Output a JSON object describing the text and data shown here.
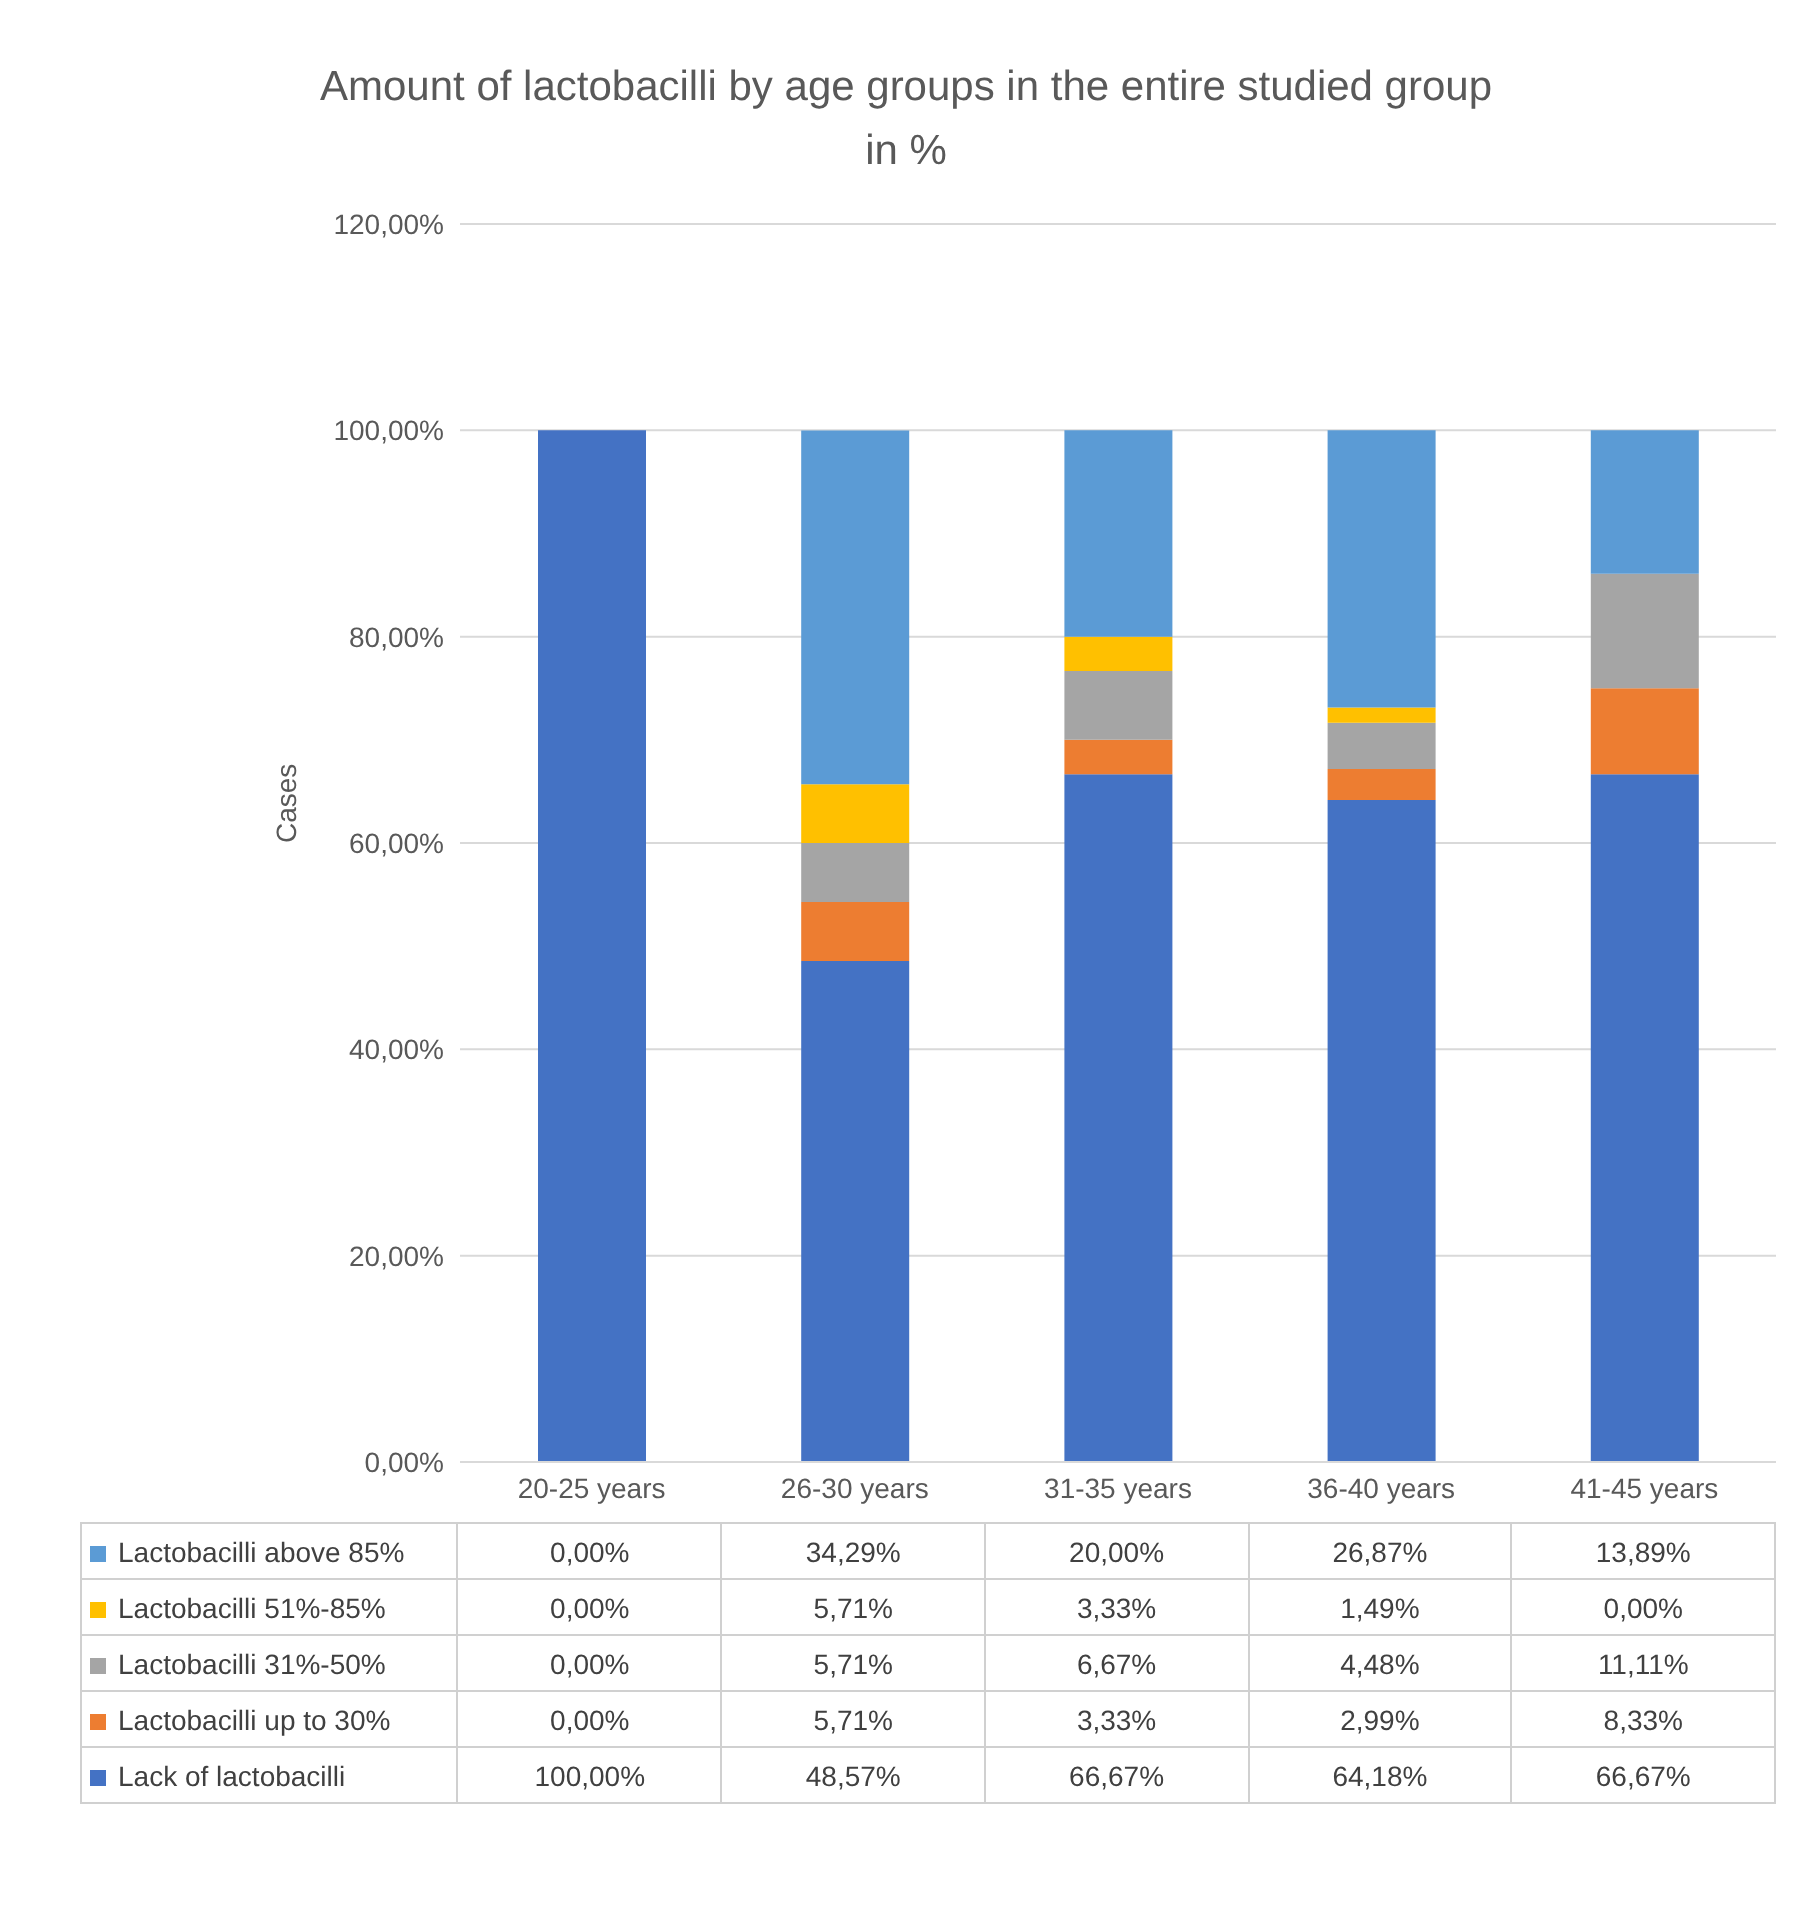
{
  "chart_data": {
    "type": "bar",
    "title": "Amount of lactobacilli by age groups in the entire studied group in %",
    "ylabel": "Cases",
    "stacked": true,
    "categories": [
      "20-25 years",
      "26-30 years",
      "31-35 years",
      "36-40 years",
      "41-45 years"
    ],
    "series": [
      {
        "name": "Lack of lactobacilli",
        "color": "#4472c4",
        "values": [
          100,
          48.57,
          66.67,
          64.18,
          66.67
        ],
        "value_labels": [
          "100,00%",
          "48,57%",
          "66,67%",
          "64,18%",
          "66,67%"
        ]
      },
      {
        "name": "Lactobacilli up to 30%",
        "color": "#ed7d31",
        "values": [
          0,
          5.71,
          3.33,
          2.99,
          8.33
        ],
        "value_labels": [
          "0,00%",
          "5,71%",
          "3,33%",
          "2,99%",
          "8,33%"
        ]
      },
      {
        "name": "Lactobacilli 31%-50%",
        "color": "#a5a5a5",
        "values": [
          0,
          5.71,
          6.67,
          4.48,
          11.11
        ],
        "value_labels": [
          "0,00%",
          "5,71%",
          "6,67%",
          "4,48%",
          "11,11%"
        ]
      },
      {
        "name": "Lactobacilli 51%-85%",
        "color": "#ffc000",
        "values": [
          0,
          5.71,
          3.33,
          1.49,
          0
        ],
        "value_labels": [
          "0,00%",
          "5,71%",
          "3,33%",
          "1,49%",
          "0,00%"
        ]
      },
      {
        "name": "Lactobacilli above 85%",
        "color": "#5b9bd5",
        "values": [
          0,
          34.29,
          20,
          26.87,
          13.89
        ],
        "value_labels": [
          "0,00%",
          "34,29%",
          "20,00%",
          "26,87%",
          "13,89%"
        ]
      }
    ],
    "ylim": [
      0,
      120
    ],
    "yticks": [
      {
        "value": 0,
        "label": "0,00%"
      },
      {
        "value": 20,
        "label": "20,00%"
      },
      {
        "value": 40,
        "label": "40,00%"
      },
      {
        "value": 60,
        "label": "60,00%"
      },
      {
        "value": 80,
        "label": "80,00%"
      },
      {
        "value": 100,
        "label": "100,00%"
      },
      {
        "value": 120,
        "label": "120,00%"
      }
    ],
    "grid": "y",
    "legend": "bottom"
  }
}
